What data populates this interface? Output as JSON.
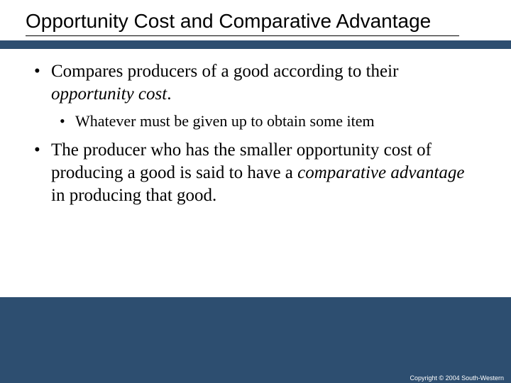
{
  "slide": {
    "title": "Opportunity Cost and Comparative Advantage",
    "background_color": "#2d4e70",
    "content_background": "#ffffff",
    "title_font": "Arial",
    "title_fontsize": 28,
    "body_font": "Times New Roman",
    "body_fontsize_l1": 25,
    "body_fontsize_l2": 22,
    "bullets": [
      {
        "level": 1,
        "pre": "Compares producers of a good according to their ",
        "italic": "opportunity cost",
        "post": "."
      },
      {
        "level": 2,
        "text": "Whatever  must be given up to obtain some item"
      },
      {
        "level": 1,
        "pre": "The producer who has the smaller opportunity cost of producing a good is said to have a ",
        "italic": "comparative advantage",
        "post": " in producing that good."
      }
    ],
    "copyright": "Copyright © 2004  South-Western"
  }
}
